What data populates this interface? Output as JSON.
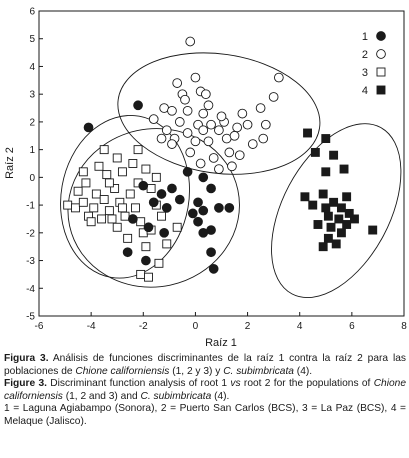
{
  "chart_data": {
    "type": "scatter",
    "xlabel": "Raíz 1",
    "ylabel": "Raíz 2",
    "xlim": [
      -6,
      8
    ],
    "ylim": [
      -5,
      6
    ],
    "xticks": [
      -6,
      -4,
      -2,
      0,
      2,
      4,
      6,
      8
    ],
    "yticks": [
      -5,
      -4,
      -3,
      -2,
      -1,
      0,
      1,
      2,
      3,
      4,
      5,
      6
    ],
    "grid": false,
    "legend": "top-right",
    "series": [
      {
        "name": "1",
        "marker": "filled-circle",
        "points": [
          [
            -4.1,
            1.8
          ],
          [
            -2.0,
            -0.3
          ],
          [
            -1.3,
            -0.6
          ],
          [
            -1.6,
            -0.9
          ],
          [
            -1.1,
            -1.1
          ],
          [
            -2.4,
            -1.5
          ],
          [
            -1.8,
            -1.8
          ],
          [
            -1.2,
            -2.0
          ],
          [
            -2.6,
            -2.7
          ],
          [
            -1.9,
            -3.0
          ],
          [
            -0.9,
            -0.4
          ],
          [
            -0.3,
            0.2
          ],
          [
            0.3,
            0.0
          ],
          [
            0.6,
            -0.4
          ],
          [
            0.1,
            -0.9
          ],
          [
            0.3,
            -1.2
          ],
          [
            0.1,
            -1.6
          ],
          [
            0.6,
            -1.9
          ],
          [
            0.9,
            -1.1
          ],
          [
            1.3,
            -1.1
          ],
          [
            0.6,
            -2.7
          ],
          [
            0.7,
            -3.3
          ],
          [
            0.3,
            -2.0
          ],
          [
            -0.6,
            -0.8
          ],
          [
            -0.1,
            -1.3
          ],
          [
            -2.2,
            2.6
          ]
        ]
      },
      {
        "name": "2",
        "marker": "open-circle",
        "points": [
          [
            -0.2,
            4.9
          ],
          [
            0.0,
            3.6
          ],
          [
            -0.7,
            3.4
          ],
          [
            0.2,
            3.1
          ],
          [
            -0.5,
            3.0
          ],
          [
            0.5,
            2.6
          ],
          [
            -1.2,
            2.5
          ],
          [
            -0.9,
            2.4
          ],
          [
            -0.3,
            2.4
          ],
          [
            0.3,
            2.3
          ],
          [
            -1.6,
            2.1
          ],
          [
            -0.6,
            2.0
          ],
          [
            0.1,
            1.9
          ],
          [
            0.6,
            1.9
          ],
          [
            1.1,
            2.0
          ],
          [
            -1.1,
            1.7
          ],
          [
            -0.3,
            1.6
          ],
          [
            0.3,
            1.7
          ],
          [
            0.9,
            1.7
          ],
          [
            1.6,
            1.8
          ],
          [
            -1.3,
            1.4
          ],
          [
            -0.8,
            1.4
          ],
          [
            0.0,
            1.3
          ],
          [
            0.5,
            1.3
          ],
          [
            1.2,
            1.4
          ],
          [
            -0.2,
            0.9
          ],
          [
            0.7,
            0.7
          ],
          [
            1.3,
            0.9
          ],
          [
            0.2,
            0.5
          ],
          [
            0.9,
            0.3
          ],
          [
            1.4,
            0.4
          ],
          [
            2.2,
            1.2
          ],
          [
            2.6,
            1.4
          ],
          [
            2.5,
            2.5
          ],
          [
            3.0,
            2.9
          ],
          [
            3.2,
            3.6
          ],
          [
            1.8,
            2.3
          ],
          [
            2.0,
            1.9
          ],
          [
            1.5,
            1.5
          ],
          [
            -0.4,
            2.8
          ],
          [
            0.4,
            3.0
          ],
          [
            -0.9,
            1.2
          ],
          [
            1.0,
            2.2
          ],
          [
            2.7,
            1.9
          ],
          [
            1.7,
            0.8
          ]
        ]
      },
      {
        "name": "3",
        "marker": "open-square",
        "points": [
          [
            -4.9,
            -1.0
          ],
          [
            -4.6,
            -1.1
          ],
          [
            -4.3,
            -0.9
          ],
          [
            -4.5,
            -0.5
          ],
          [
            -4.1,
            -1.4
          ],
          [
            -3.9,
            -1.1
          ],
          [
            -4.2,
            -0.2
          ],
          [
            -3.8,
            -0.6
          ],
          [
            -3.5,
            -0.8
          ],
          [
            -3.3,
            -1.2
          ],
          [
            -3.6,
            -1.5
          ],
          [
            -3.1,
            -0.4
          ],
          [
            -2.9,
            -0.9
          ],
          [
            -2.7,
            -1.4
          ],
          [
            -3.0,
            -1.8
          ],
          [
            -2.5,
            -0.6
          ],
          [
            -2.3,
            -1.1
          ],
          [
            -2.1,
            -1.6
          ],
          [
            -2.6,
            -2.2
          ],
          [
            -2.0,
            -2.0
          ],
          [
            -3.7,
            0.4
          ],
          [
            -3.4,
            0.1
          ],
          [
            -2.8,
            0.2
          ],
          [
            -2.2,
            -0.2
          ],
          [
            -1.7,
            -0.4
          ],
          [
            -1.5,
            -1.0
          ],
          [
            -1.3,
            -1.4
          ],
          [
            -1.7,
            -1.9
          ],
          [
            -1.9,
            -2.5
          ],
          [
            -2.1,
            -3.5
          ],
          [
            -1.8,
            -3.6
          ],
          [
            -1.1,
            -2.4
          ],
          [
            -0.7,
            -1.8
          ],
          [
            -1.4,
            -3.1
          ],
          [
            -3.3,
            -0.2
          ],
          [
            -2.4,
            0.5
          ],
          [
            -3.0,
            0.7
          ],
          [
            -1.9,
            0.3
          ],
          [
            -4.3,
            0.2
          ],
          [
            -2.8,
            -1.1
          ],
          [
            -3.5,
            1.0
          ],
          [
            -2.2,
            1.0
          ],
          [
            -1.5,
            0.0
          ],
          [
            -4.0,
            -1.6
          ],
          [
            -3.2,
            -1.5
          ]
        ]
      },
      {
        "name": "4",
        "marker": "filled-square",
        "points": [
          [
            4.3,
            1.6
          ],
          [
            5.0,
            1.4
          ],
          [
            4.6,
            0.9
          ],
          [
            5.3,
            0.8
          ],
          [
            5.0,
            0.2
          ],
          [
            5.7,
            0.3
          ],
          [
            4.2,
            -0.7
          ],
          [
            4.5,
            -1.0
          ],
          [
            4.9,
            -0.6
          ],
          [
            5.3,
            -0.9
          ],
          [
            5.6,
            -1.1
          ],
          [
            5.8,
            -0.7
          ],
          [
            5.1,
            -1.4
          ],
          [
            5.5,
            -1.5
          ],
          [
            5.9,
            -1.3
          ],
          [
            4.7,
            -1.7
          ],
          [
            5.2,
            -1.8
          ],
          [
            5.8,
            -1.7
          ],
          [
            6.1,
            -1.5
          ],
          [
            5.1,
            -2.2
          ],
          [
            5.4,
            -2.4
          ],
          [
            4.9,
            -2.5
          ],
          [
            5.6,
            -2.0
          ],
          [
            6.8,
            -1.9
          ],
          [
            5.0,
            -1.1
          ]
        ]
      }
    ],
    "ellipses": [
      {
        "group": "1",
        "cx": -1.6,
        "cy": -1.1,
        "rx": 3.3,
        "ry": 2.85,
        "angle": -12
      },
      {
        "group": "2",
        "cx": 0.9,
        "cy": 2.3,
        "rx": 3.9,
        "ry": 2.15,
        "angle": 8
      },
      {
        "group": "3",
        "cx": -2.7,
        "cy": -0.7,
        "rx": 2.45,
        "ry": 2.95,
        "angle": 10
      },
      {
        "group": "4",
        "cx": 5.4,
        "cy": -1.2,
        "rx": 2.05,
        "ry": 3.4,
        "angle": 28
      }
    ]
  },
  "caption": {
    "es_label": "Figura 3.",
    "es_part1": " Análisis de funciones discriminantes de la raíz 1 contra la raíz 2 para las poblaciones de ",
    "es_species1": "Chione californiensis",
    "es_part2": " (1, 2 y 3) y ",
    "es_species2": "C. subimbricata",
    "es_part3": " (4).",
    "en_label": "Figure 3.",
    "en_part1": " Discriminant function analysis of root 1 ",
    "en_vs": "vs",
    "en_part2": " root 2 for the populations of ",
    "en_species1": "Chione californiensis",
    "en_part3": " (1, 2 and 3) and ",
    "en_species2": "C. subimbricata",
    "en_part4": " (4).",
    "groups_text": "1 = Laguna Agiabampo (Sonora), 2 = Puerto San Carlos (BCS), 3 = La Paz (BCS), 4 = Melaque (Jalisco)."
  }
}
